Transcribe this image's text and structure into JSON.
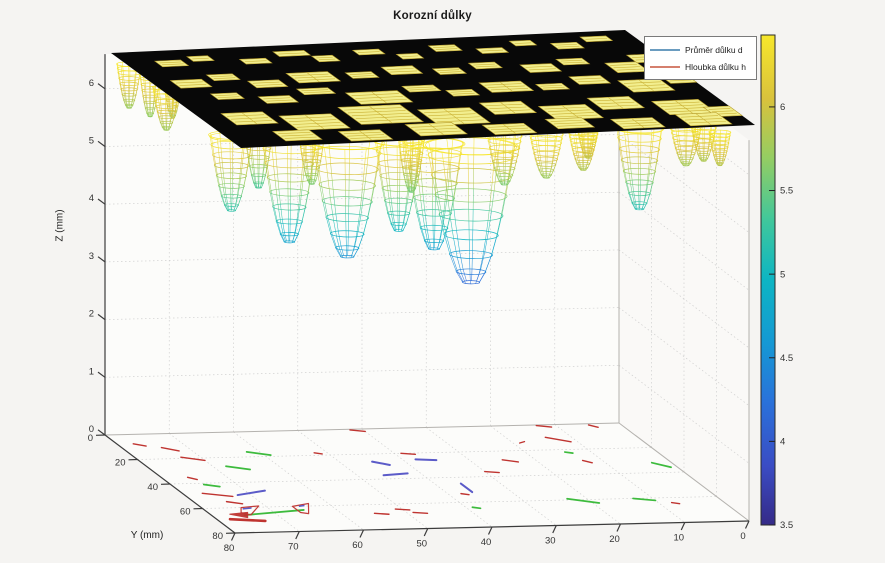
{
  "title": "Korozní důlky",
  "legend": {
    "items": [
      {
        "label": "Průměr důlku d",
        "color": "#6a9cc0"
      },
      {
        "label": "Hloubka důlku h",
        "color": "#d57f6d"
      }
    ]
  },
  "axes": {
    "z": {
      "label": "Z (mm)",
      "ticks": [
        0,
        1,
        2,
        3,
        4,
        5,
        6
      ]
    },
    "y": {
      "label": "Y (mm)",
      "ticks": [
        0,
        20,
        40,
        60,
        80
      ]
    },
    "x": {
      "label": "",
      "ticks": [
        80,
        70,
        60,
        50,
        40,
        30,
        20,
        10,
        0
      ]
    }
  },
  "colorbar": {
    "min": 3.5,
    "max": 6.43,
    "tick_labels": [
      "3.5",
      "4",
      "4.5",
      "5",
      "5.5",
      "6"
    ],
    "tick_values": [
      3.5,
      4,
      4.5,
      5,
      5.5,
      6
    ],
    "stops": [
      [
        0,
        "#352a87"
      ],
      [
        0.12,
        "#3a4cc4"
      ],
      [
        0.25,
        "#2a71da"
      ],
      [
        0.37,
        "#1598d4"
      ],
      [
        0.5,
        "#0db5c3"
      ],
      [
        0.62,
        "#3fc79c"
      ],
      [
        0.75,
        "#95cd62"
      ],
      [
        0.87,
        "#d9c23c"
      ],
      [
        1,
        "#f7e72b"
      ]
    ]
  },
  "marker_colors": {
    "red": "#bf3430",
    "green": "#3dbb3d",
    "blue": "#5b5bc8"
  },
  "chart_data": {
    "type": "surface-3d",
    "title": "Korozní důlky",
    "description": "3D wireframe surface of a corroded specimen: flat top plate (black with yellow mesh pit openings) at z≈6.3-6.6 mm with paraboloid corrosion pits hanging below, colored by depth (parula colormap, colorbar 3.5-6). Pit diameter (red) and depth (blue/green) indicator segments are projected on the z=0 floor.",
    "x_range_mm": [
      0,
      80
    ],
    "y_range_mm": [
      0,
      80
    ],
    "z_range_mm": [
      0,
      6.6
    ],
    "surface_top_z_mm": 6.5,
    "pit_rim_z_mm": 6.33,
    "pits": [
      {
        "x": 77,
        "y": 3,
        "r": 1.7,
        "z_bottom": 5.7
      },
      {
        "x": 75,
        "y": 8,
        "r": 1.5,
        "z_bottom": 5.65
      },
      {
        "x": 73,
        "y": 14,
        "r": 1.3,
        "z_bottom": 5.75
      },
      {
        "x": 76,
        "y": 22,
        "r": 1.9,
        "z_bottom": 5.72
      },
      {
        "x": 76,
        "y": 62,
        "r": 3.1,
        "z_bottom": 5.15
      },
      {
        "x": 69,
        "y": 51,
        "r": 2.2,
        "z_bottom": 5.3
      },
      {
        "x": 68,
        "y": 66,
        "r": 4.0,
        "z_bottom": 4.65
      },
      {
        "x": 63,
        "y": 60,
        "r": 1.9,
        "z_bottom": 5.55
      },
      {
        "x": 60,
        "y": 70,
        "r": 5.1,
        "z_bottom": 4.45
      },
      {
        "x": 52,
        "y": 70,
        "r": 3.4,
        "z_bottom": 4.9
      },
      {
        "x": 49,
        "y": 66,
        "r": 1.9,
        "z_bottom": 5.5
      },
      {
        "x": 47,
        "y": 72,
        "r": 4.2,
        "z_bottom": 4.6
      },
      {
        "x": 42,
        "y": 75,
        "r": 6.5,
        "z_bottom": 4.05
      },
      {
        "x": 34,
        "y": 64,
        "r": 2.5,
        "z_bottom": 5.55
      },
      {
        "x": 28,
        "y": 66,
        "r": 2.3,
        "z_bottom": 5.7
      },
      {
        "x": 22,
        "y": 65,
        "r": 2.0,
        "z_bottom": 5.8
      },
      {
        "x": 20,
        "y": 60,
        "r": 1.5,
        "z_bottom": 5.9
      },
      {
        "x": 13,
        "y": 64,
        "r": 3.3,
        "z_bottom": 5.05
      },
      {
        "x": 5,
        "y": 61,
        "r": 2.2,
        "z_bottom": 5.75
      },
      {
        "x": 2,
        "y": 60,
        "r": 1.8,
        "z_bottom": 5.8
      },
      {
        "x": 1,
        "y": 66,
        "r": 1.5,
        "z_bottom": 5.85
      }
    ],
    "slab_openings": [
      [
        0.06,
        0.1,
        0.05,
        0.06
      ],
      [
        0.13,
        0.07,
        0.04,
        0.05
      ],
      [
        0.22,
        0.12,
        0.05,
        0.05
      ],
      [
        0.3,
        0.06,
        0.06,
        0.05
      ],
      [
        0.36,
        0.12,
        0.04,
        0.06
      ],
      [
        0.45,
        0.08,
        0.05,
        0.05
      ],
      [
        0.52,
        0.14,
        0.04,
        0.05
      ],
      [
        0.6,
        0.07,
        0.05,
        0.06
      ],
      [
        0.68,
        0.12,
        0.05,
        0.05
      ],
      [
        0.76,
        0.06,
        0.04,
        0.05
      ],
      [
        0.83,
        0.1,
        0.05,
        0.06
      ],
      [
        0.9,
        0.05,
        0.05,
        0.05
      ],
      [
        0.04,
        0.3,
        0.06,
        0.08
      ],
      [
        0.12,
        0.26,
        0.05,
        0.06
      ],
      [
        0.18,
        0.34,
        0.06,
        0.07
      ],
      [
        0.27,
        0.28,
        0.08,
        0.1
      ],
      [
        0.38,
        0.3,
        0.05,
        0.06
      ],
      [
        0.46,
        0.26,
        0.06,
        0.08
      ],
      [
        0.55,
        0.3,
        0.05,
        0.06
      ],
      [
        0.63,
        0.26,
        0.05,
        0.06
      ],
      [
        0.72,
        0.3,
        0.06,
        0.08
      ],
      [
        0.8,
        0.26,
        0.05,
        0.06
      ],
      [
        0.88,
        0.32,
        0.06,
        0.1
      ],
      [
        0.94,
        0.25,
        0.04,
        0.08
      ],
      [
        0.08,
        0.45,
        0.05,
        0.06
      ],
      [
        0.16,
        0.5,
        0.06,
        0.07
      ],
      [
        0.25,
        0.44,
        0.06,
        0.06
      ],
      [
        0.33,
        0.5,
        0.1,
        0.12
      ],
      [
        0.45,
        0.46,
        0.06,
        0.06
      ],
      [
        0.52,
        0.52,
        0.05,
        0.06
      ],
      [
        0.6,
        0.46,
        0.08,
        0.1
      ],
      [
        0.7,
        0.5,
        0.05,
        0.06
      ],
      [
        0.78,
        0.44,
        0.06,
        0.08
      ],
      [
        0.86,
        0.5,
        0.08,
        0.12
      ],
      [
        0.95,
        0.45,
        0.05,
        0.1
      ],
      [
        0.05,
        0.65,
        0.08,
        0.12
      ],
      [
        0.15,
        0.7,
        0.1,
        0.15
      ],
      [
        0.28,
        0.64,
        0.12,
        0.18
      ],
      [
        0.42,
        0.7,
        0.1,
        0.16
      ],
      [
        0.55,
        0.66,
        0.08,
        0.12
      ],
      [
        0.65,
        0.72,
        0.09,
        0.14
      ],
      [
        0.76,
        0.66,
        0.08,
        0.12
      ],
      [
        0.87,
        0.72,
        0.09,
        0.14
      ],
      [
        0.95,
        0.8,
        0.05,
        0.1
      ],
      [
        0.1,
        0.85,
        0.07,
        0.1
      ],
      [
        0.22,
        0.88,
        0.08,
        0.1
      ],
      [
        0.36,
        0.84,
        0.09,
        0.12
      ],
      [
        0.5,
        0.88,
        0.08,
        0.1
      ],
      [
        0.63,
        0.85,
        0.07,
        0.1
      ],
      [
        0.75,
        0.88,
        0.08,
        0.1
      ],
      [
        0.88,
        0.86,
        0.08,
        0.12
      ]
    ],
    "floor_markers": {
      "segments": [
        [
          "red",
          77.5,
          7.5,
          76,
          9.5
        ],
        [
          "red",
          74,
          11,
          72,
          14
        ],
        [
          "red",
          73,
          19,
          70,
          22
        ],
        [
          "red",
          76,
          35,
          75,
          37
        ],
        [
          "red",
          77,
          48,
          73,
          51
        ],
        [
          "red",
          55,
          67,
          53,
          68
        ],
        [
          "red",
          51,
          64,
          49,
          65
        ],
        [
          "red",
          49,
          67,
          47,
          68
        ],
        [
          "red",
          30,
          36,
          28,
          37
        ],
        [
          "red",
          25,
          27,
          23,
          29
        ],
        [
          "red",
          14,
          10,
          11,
          14
        ],
        [
          "red",
          13,
          0.5,
          11,
          2
        ],
        [
          "red",
          5,
          1,
          4,
          3
        ],
        [
          "red",
          13,
          29,
          12,
          31
        ],
        [
          "red",
          8,
          64,
          7,
          65
        ],
        [
          "red",
          19,
          14,
          18,
          13
        ],
        [
          "red",
          39,
          20,
          37,
          21
        ],
        [
          "red",
          42,
          0.5,
          40,
          2
        ],
        [
          "red",
          52,
          18,
          51,
          19
        ],
        [
          "red",
          38,
          53,
          37,
          54
        ],
        [
          "red",
          75,
          55,
          73,
          57
        ],
        [
          "green",
          62,
          16,
          59,
          19
        ],
        [
          "green",
          68,
          27,
          65,
          30
        ],
        [
          "green",
          75,
          41,
          73,
          43
        ],
        [
          "green",
          14,
          22,
          13,
          23
        ],
        [
          "green",
          23,
          59,
          19,
          63
        ],
        [
          "green",
          13,
          60,
          10,
          62
        ],
        [
          "green",
          3,
          32,
          1,
          36
        ],
        [
          "green",
          39,
          64,
          38,
          65
        ],
        [
          "blue",
          72,
          50,
          67,
          47
        ],
        [
          "blue",
          46,
          37,
          42,
          36
        ],
        [
          "blue",
          36,
          45,
          36,
          52
        ],
        [
          "blue",
          45,
          26,
          43,
          29
        ],
        [
          "blue",
          38,
          25,
          35,
          26
        ]
      ],
      "thick_segments": [
        [
          "red",
          78,
          69,
          73,
          71,
          2.6
        ],
        [
          "green",
          75,
          66,
          65,
          63,
          1.8
        ]
      ],
      "polygons": [
        {
          "color": "red",
          "fill": false,
          "points": [
            [
              74,
              60
            ],
            [
              71,
              59
            ],
            [
              74,
              66
            ],
            [
              75,
              64
            ]
          ]
        },
        {
          "color": "red",
          "fill": false,
          "points": [
            [
              66,
              60
            ],
            [
              63,
              58
            ],
            [
              65,
              66
            ],
            [
              66,
              65
            ]
          ]
        },
        {
          "color": "red",
          "fill": true,
          "points": [
            [
              77,
              65
            ],
            [
              74,
              64
            ],
            [
              75,
              68
            ]
          ]
        }
      ],
      "dashes": [
        [
          "blue",
          74,
          61,
          72.5,
          60.5
        ],
        [
          "blue",
          65,
          60,
          64,
          59.5
        ]
      ]
    }
  }
}
